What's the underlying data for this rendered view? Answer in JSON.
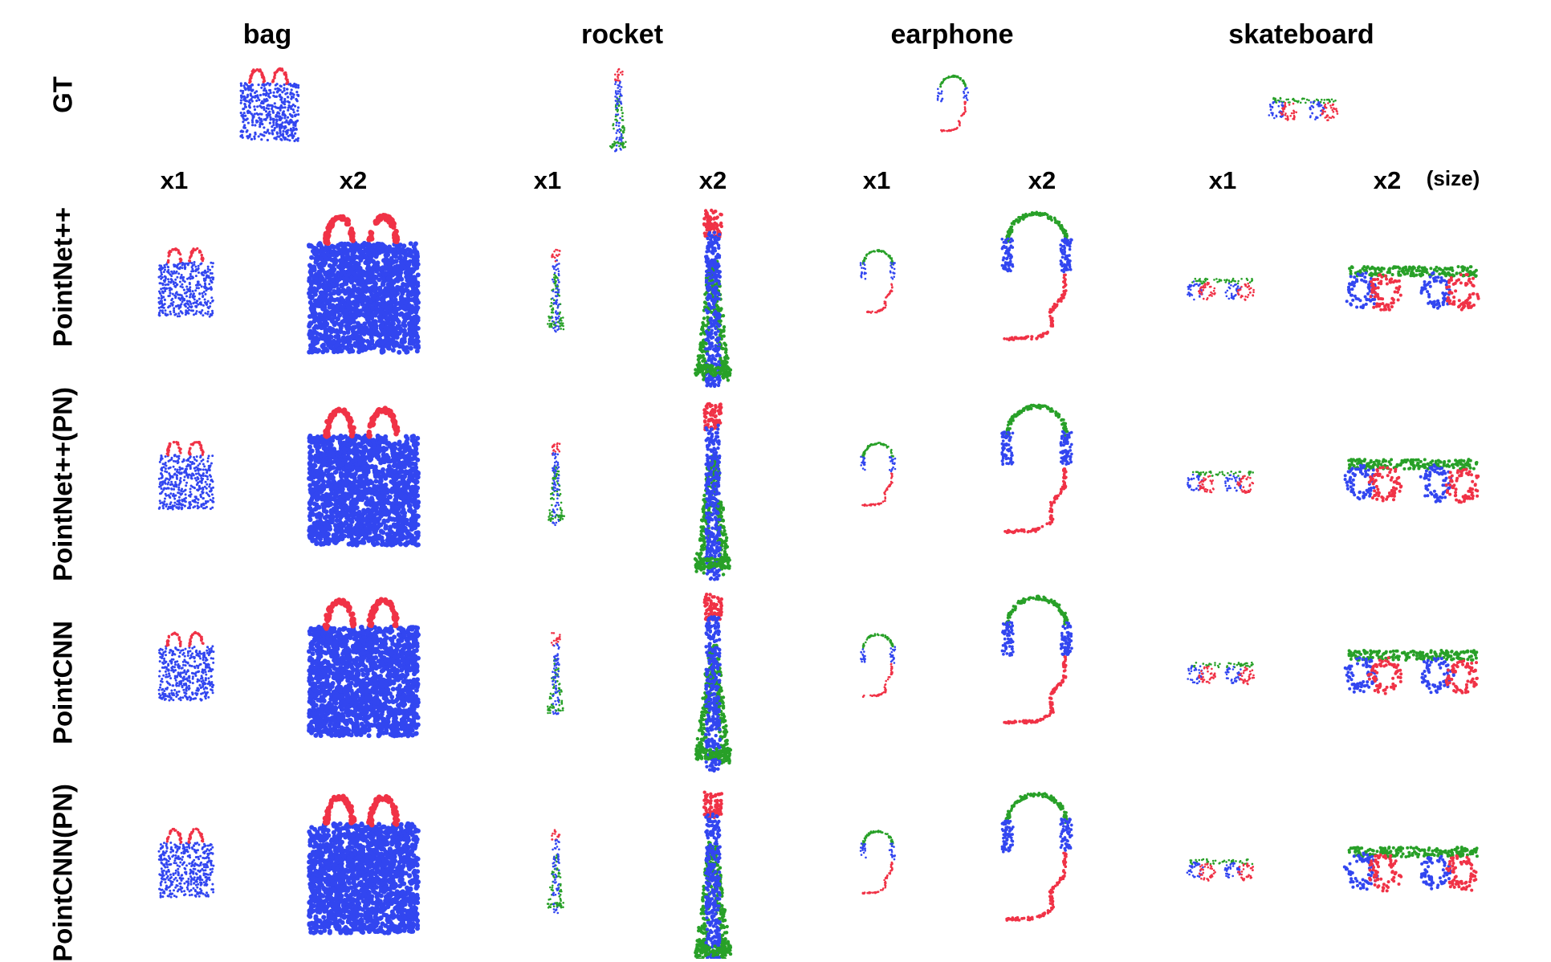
{
  "categories": [
    "bag",
    "rocket",
    "earphone",
    "skateboard"
  ],
  "scale_labels": {
    "x1": "x1",
    "x2": "x2",
    "size_note": "(size)"
  },
  "rows": [
    "GT",
    "PointNet++",
    "PointNet++(PN)",
    "PointCNN",
    "PointCNN(PN)"
  ],
  "colors": {
    "part_a": "#3246f0",
    "part_b": "#f03246",
    "part_c": "#28a028",
    "background": "#ffffff"
  },
  "icons": {
    "bag": "shopping-bag-point-cloud-icon",
    "rocket": "rocket-point-cloud-icon",
    "earphone": "headphones-point-cloud-icon",
    "skateboard": "skateboard-point-cloud-icon"
  }
}
